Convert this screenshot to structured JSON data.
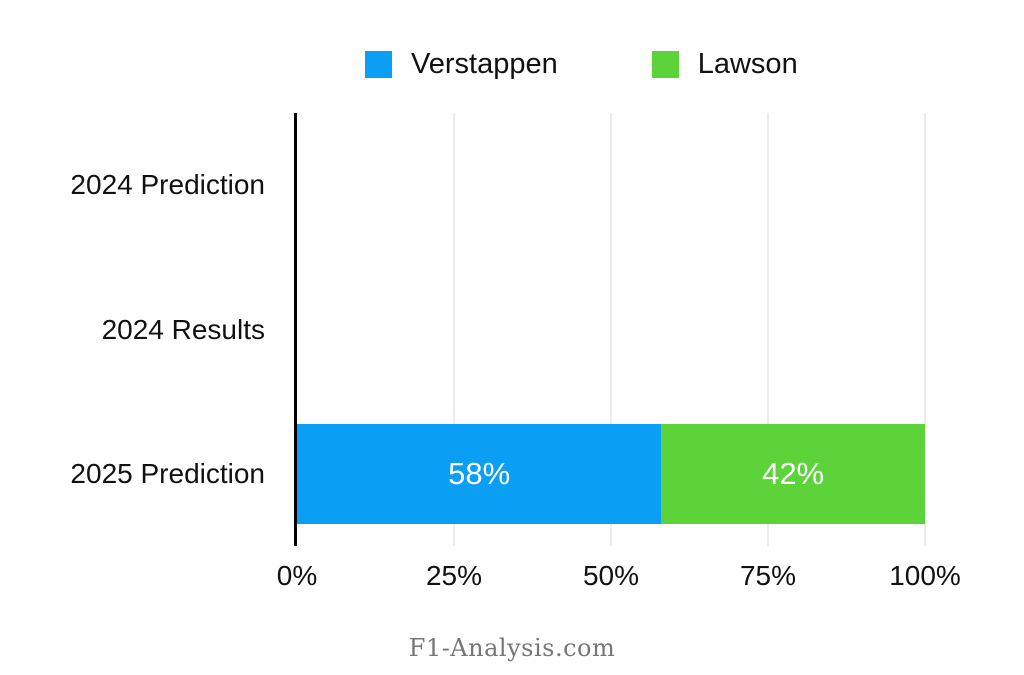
{
  "legend": {
    "items": [
      {
        "label": "Verstappen",
        "color": "#0a9ff4"
      },
      {
        "label": "Lawson",
        "color": "#5cd339"
      }
    ]
  },
  "chart_data": {
    "type": "bar",
    "orientation": "horizontal",
    "stacked": true,
    "title": "",
    "categories": [
      "2024 Prediction",
      "2024 Results",
      "2025 Prediction"
    ],
    "series": [
      {
        "name": "Verstappen",
        "color": "#0a9ff4",
        "values": [
          null,
          null,
          58
        ],
        "value_labels": [
          null,
          null,
          "58%"
        ]
      },
      {
        "name": "Lawson",
        "color": "#5cd339",
        "values": [
          null,
          null,
          42
        ],
        "value_labels": [
          null,
          null,
          "42%"
        ]
      }
    ],
    "x_ticks": [
      "0%",
      "25%",
      "50%",
      "75%",
      "100%"
    ],
    "xlim": [
      0,
      100
    ],
    "grid": "vertical",
    "legend_position": "top",
    "footer": "F1-Analysis.com"
  },
  "footer": {
    "text": "F1-Analysis.com"
  },
  "colors": {
    "background": "#ffffff",
    "axis": "#000000",
    "gridline": "#d9d9d9",
    "bar_label": "#ffffff",
    "text": "#111111",
    "footer_text": "#767676"
  }
}
